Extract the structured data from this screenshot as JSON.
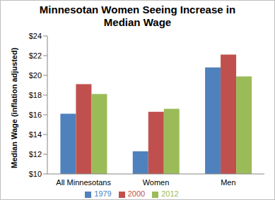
{
  "chart_data": {
    "type": "bar",
    "title": "Minnesotan Women Seeing Increase in Median Wage",
    "y_label": "Median Wage (inflation adjusted)",
    "categories": [
      "All Minnesotans",
      "Women",
      "Men"
    ],
    "series": [
      {
        "name": "1979",
        "color": "#4f81bd",
        "values": [
          16.1,
          12.3,
          20.8
        ]
      },
      {
        "name": "2000",
        "color": "#c0504d",
        "values": [
          19.1,
          16.3,
          22.1
        ]
      },
      {
        "name": "2012",
        "color": "#9bbb59",
        "values": [
          18.1,
          16.6,
          19.9
        ]
      }
    ],
    "ylim": [
      10,
      24
    ],
    "yticks": [
      {
        "value": 10,
        "label": "$10"
      },
      {
        "value": 12,
        "label": "$12"
      },
      {
        "value": 14,
        "label": "$14"
      },
      {
        "value": 16,
        "label": "$16"
      },
      {
        "value": 18,
        "label": "$18"
      },
      {
        "value": 20,
        "label": "$20"
      },
      {
        "value": 22,
        "label": "$22"
      },
      {
        "value": 24,
        "label": "$24"
      }
    ],
    "grid": false,
    "legend": "bottom"
  }
}
